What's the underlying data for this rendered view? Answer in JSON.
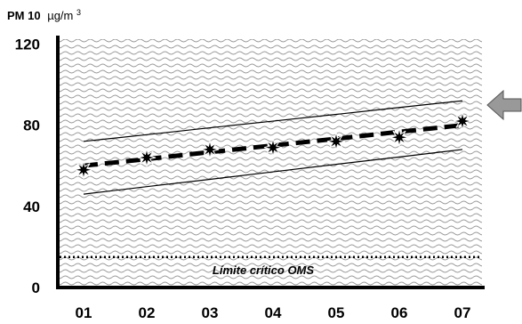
{
  "chart_data": {
    "type": "line",
    "y_label_bold": "PM 10",
    "y_label_unit": "µg/m",
    "y_label_sup": "3",
    "ylim": [
      0,
      120
    ],
    "y_ticks": [
      "0",
      "40",
      "80",
      "120"
    ],
    "categories": [
      "01",
      "02",
      "03",
      "04",
      "05",
      "06",
      "07"
    ],
    "series": [
      {
        "values": [
          58,
          64,
          68,
          69,
          72,
          74,
          82
        ],
        "marker": "star"
      },
      {
        "values": [
          60,
          63.3,
          66.7,
          70,
          73.3,
          76.7,
          80
        ],
        "style": "dashed",
        "role": "trend"
      },
      {
        "values": [
          72,
          75.3,
          78.7,
          82,
          85.3,
          88.7,
          92
        ],
        "style": "thin",
        "role": "upper-bound"
      },
      {
        "values": [
          46,
          49.7,
          53.3,
          57,
          60.7,
          64.3,
          68
        ],
        "style": "thin",
        "role": "lower-bound"
      }
    ],
    "reference_line": {
      "value": 15,
      "label": "Límite crítico OMS",
      "style": "dotted"
    },
    "background_pattern": "wavy-hatch",
    "legend": "none",
    "grid": false,
    "arrow_marker_icon": "left-arrow-icon"
  },
  "colors": {
    "pattern": "#9a9a9a",
    "line": "#000000",
    "arrow_fill": "#999999"
  }
}
